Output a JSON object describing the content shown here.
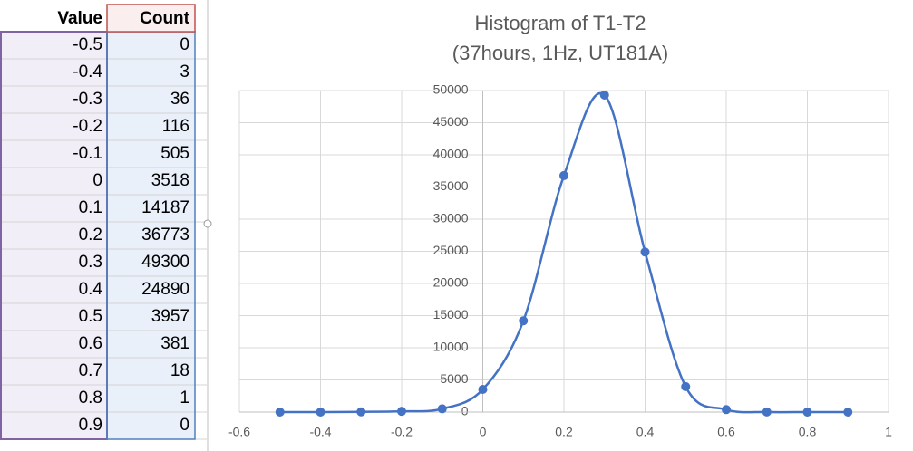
{
  "table": {
    "headers": [
      "Value",
      "Count"
    ]
  },
  "chart_data": {
    "type": "scatter-smooth",
    "title": "Histogram of T1-T2",
    "subtitle": "(37hours, 1Hz, UT181A)",
    "x": [
      -0.5,
      -0.4,
      -0.3,
      -0.2,
      -0.1,
      0,
      0.1,
      0.2,
      0.3,
      0.4,
      0.5,
      0.6,
      0.7,
      0.8,
      0.9
    ],
    "values": [
      0,
      3,
      36,
      116,
      505,
      3518,
      14187,
      36773,
      49300,
      24890,
      3957,
      381,
      18,
      1,
      0
    ],
    "color": "#4472c4",
    "xlim": [
      -0.6,
      1
    ],
    "xticks": [
      -0.6,
      -0.4,
      -0.2,
      0,
      0.2,
      0.4,
      0.6,
      0.8,
      1
    ],
    "ylim": [
      0,
      50000
    ],
    "yticks": [
      0,
      5000,
      10000,
      15000,
      20000,
      25000,
      30000,
      35000,
      40000,
      45000,
      50000
    ],
    "grid": true
  }
}
